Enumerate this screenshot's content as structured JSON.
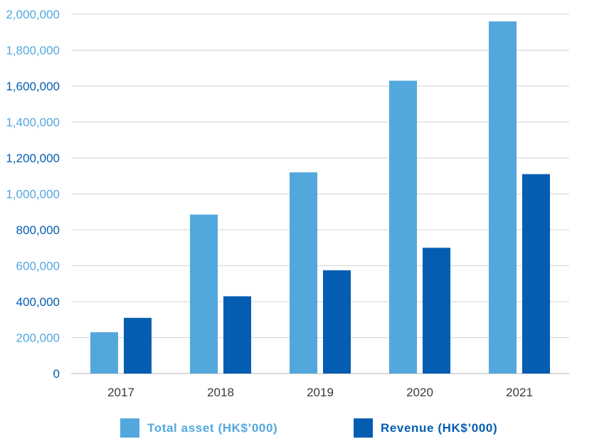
{
  "chart_data": {
    "type": "bar",
    "categories": [
      "2017",
      "2018",
      "2019",
      "2020",
      "2021"
    ],
    "series": [
      {
        "name": "Total asset (HK$’000)",
        "color": "#52a8dd",
        "values": [
          230000,
          885000,
          1120000,
          1630000,
          1960000
        ]
      },
      {
        "name": "Revenue (HK$’000)",
        "color": "#045db1",
        "values": [
          310000,
          430000,
          575000,
          700000,
          1110000
        ]
      }
    ],
    "ylim": [
      0,
      2000000
    ],
    "y_ticks": [
      0,
      200000,
      400000,
      600000,
      800000,
      1000000,
      1200000,
      1400000,
      1600000,
      1800000,
      2000000
    ],
    "y_tick_labels": [
      "0",
      "200,000",
      "400,000",
      "600,000",
      "800,000",
      "1,000,000",
      "1,200,000",
      "1,400,000",
      "1,600,000",
      "1,800,000",
      "2,000,000"
    ],
    "y_tick_colors": [
      "#045db1",
      "#52a8dd",
      "#045db1",
      "#52a8dd",
      "#045db1",
      "#52a8dd",
      "#045db1",
      "#52a8dd",
      "#045db1",
      "#52a8dd",
      "#52a8dd"
    ],
    "grid": true,
    "legend_position": "bottom",
    "xlabel": "",
    "ylabel": "",
    "title": ""
  }
}
